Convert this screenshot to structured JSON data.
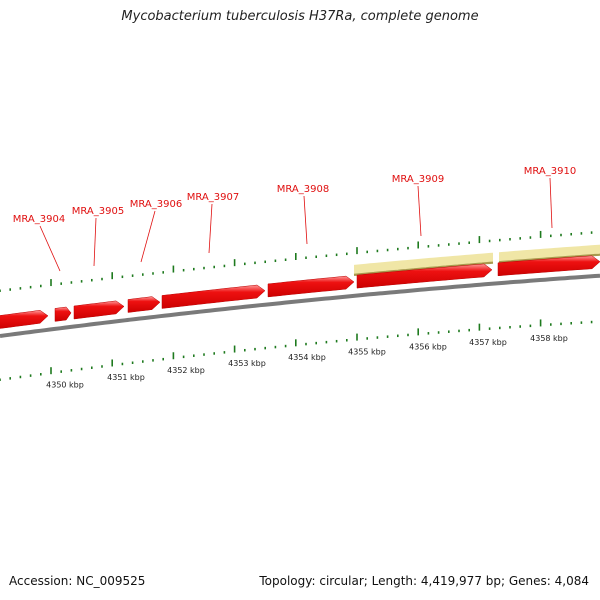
{
  "title": "Mycobacterium tuberculosis H37Ra, complete genome",
  "footer": {
    "accession": "Accession: NC_009525",
    "summary": "Topology: circular; Length: 4,419,977 bp; Genes: 4,084"
  },
  "colors": {
    "gene_fill": "#ee1111",
    "gene_highlight": "#ff8a8a",
    "region_fill": "#f0e6a6",
    "region_edge": "#a89a4e",
    "backbone": "#7a7a7a",
    "tick": "#1e7a1e",
    "label": "#e01010"
  },
  "genes": [
    {
      "name": "MRA_3904"
    },
    {
      "name": "MRA_3905"
    },
    {
      "name": "MRA_3906"
    },
    {
      "name": "MRA_3907"
    },
    {
      "name": "MRA_3908"
    },
    {
      "name": "MRA_3909"
    },
    {
      "name": "MRA_3910"
    }
  ],
  "scale_labels": [
    "4350 kbp",
    "4351 kbp",
    "4352 kbp",
    "4353 kbp",
    "4354 kbp",
    "4355 kbp",
    "4356 kbp",
    "4357 kbp",
    "4358 kbp"
  ]
}
